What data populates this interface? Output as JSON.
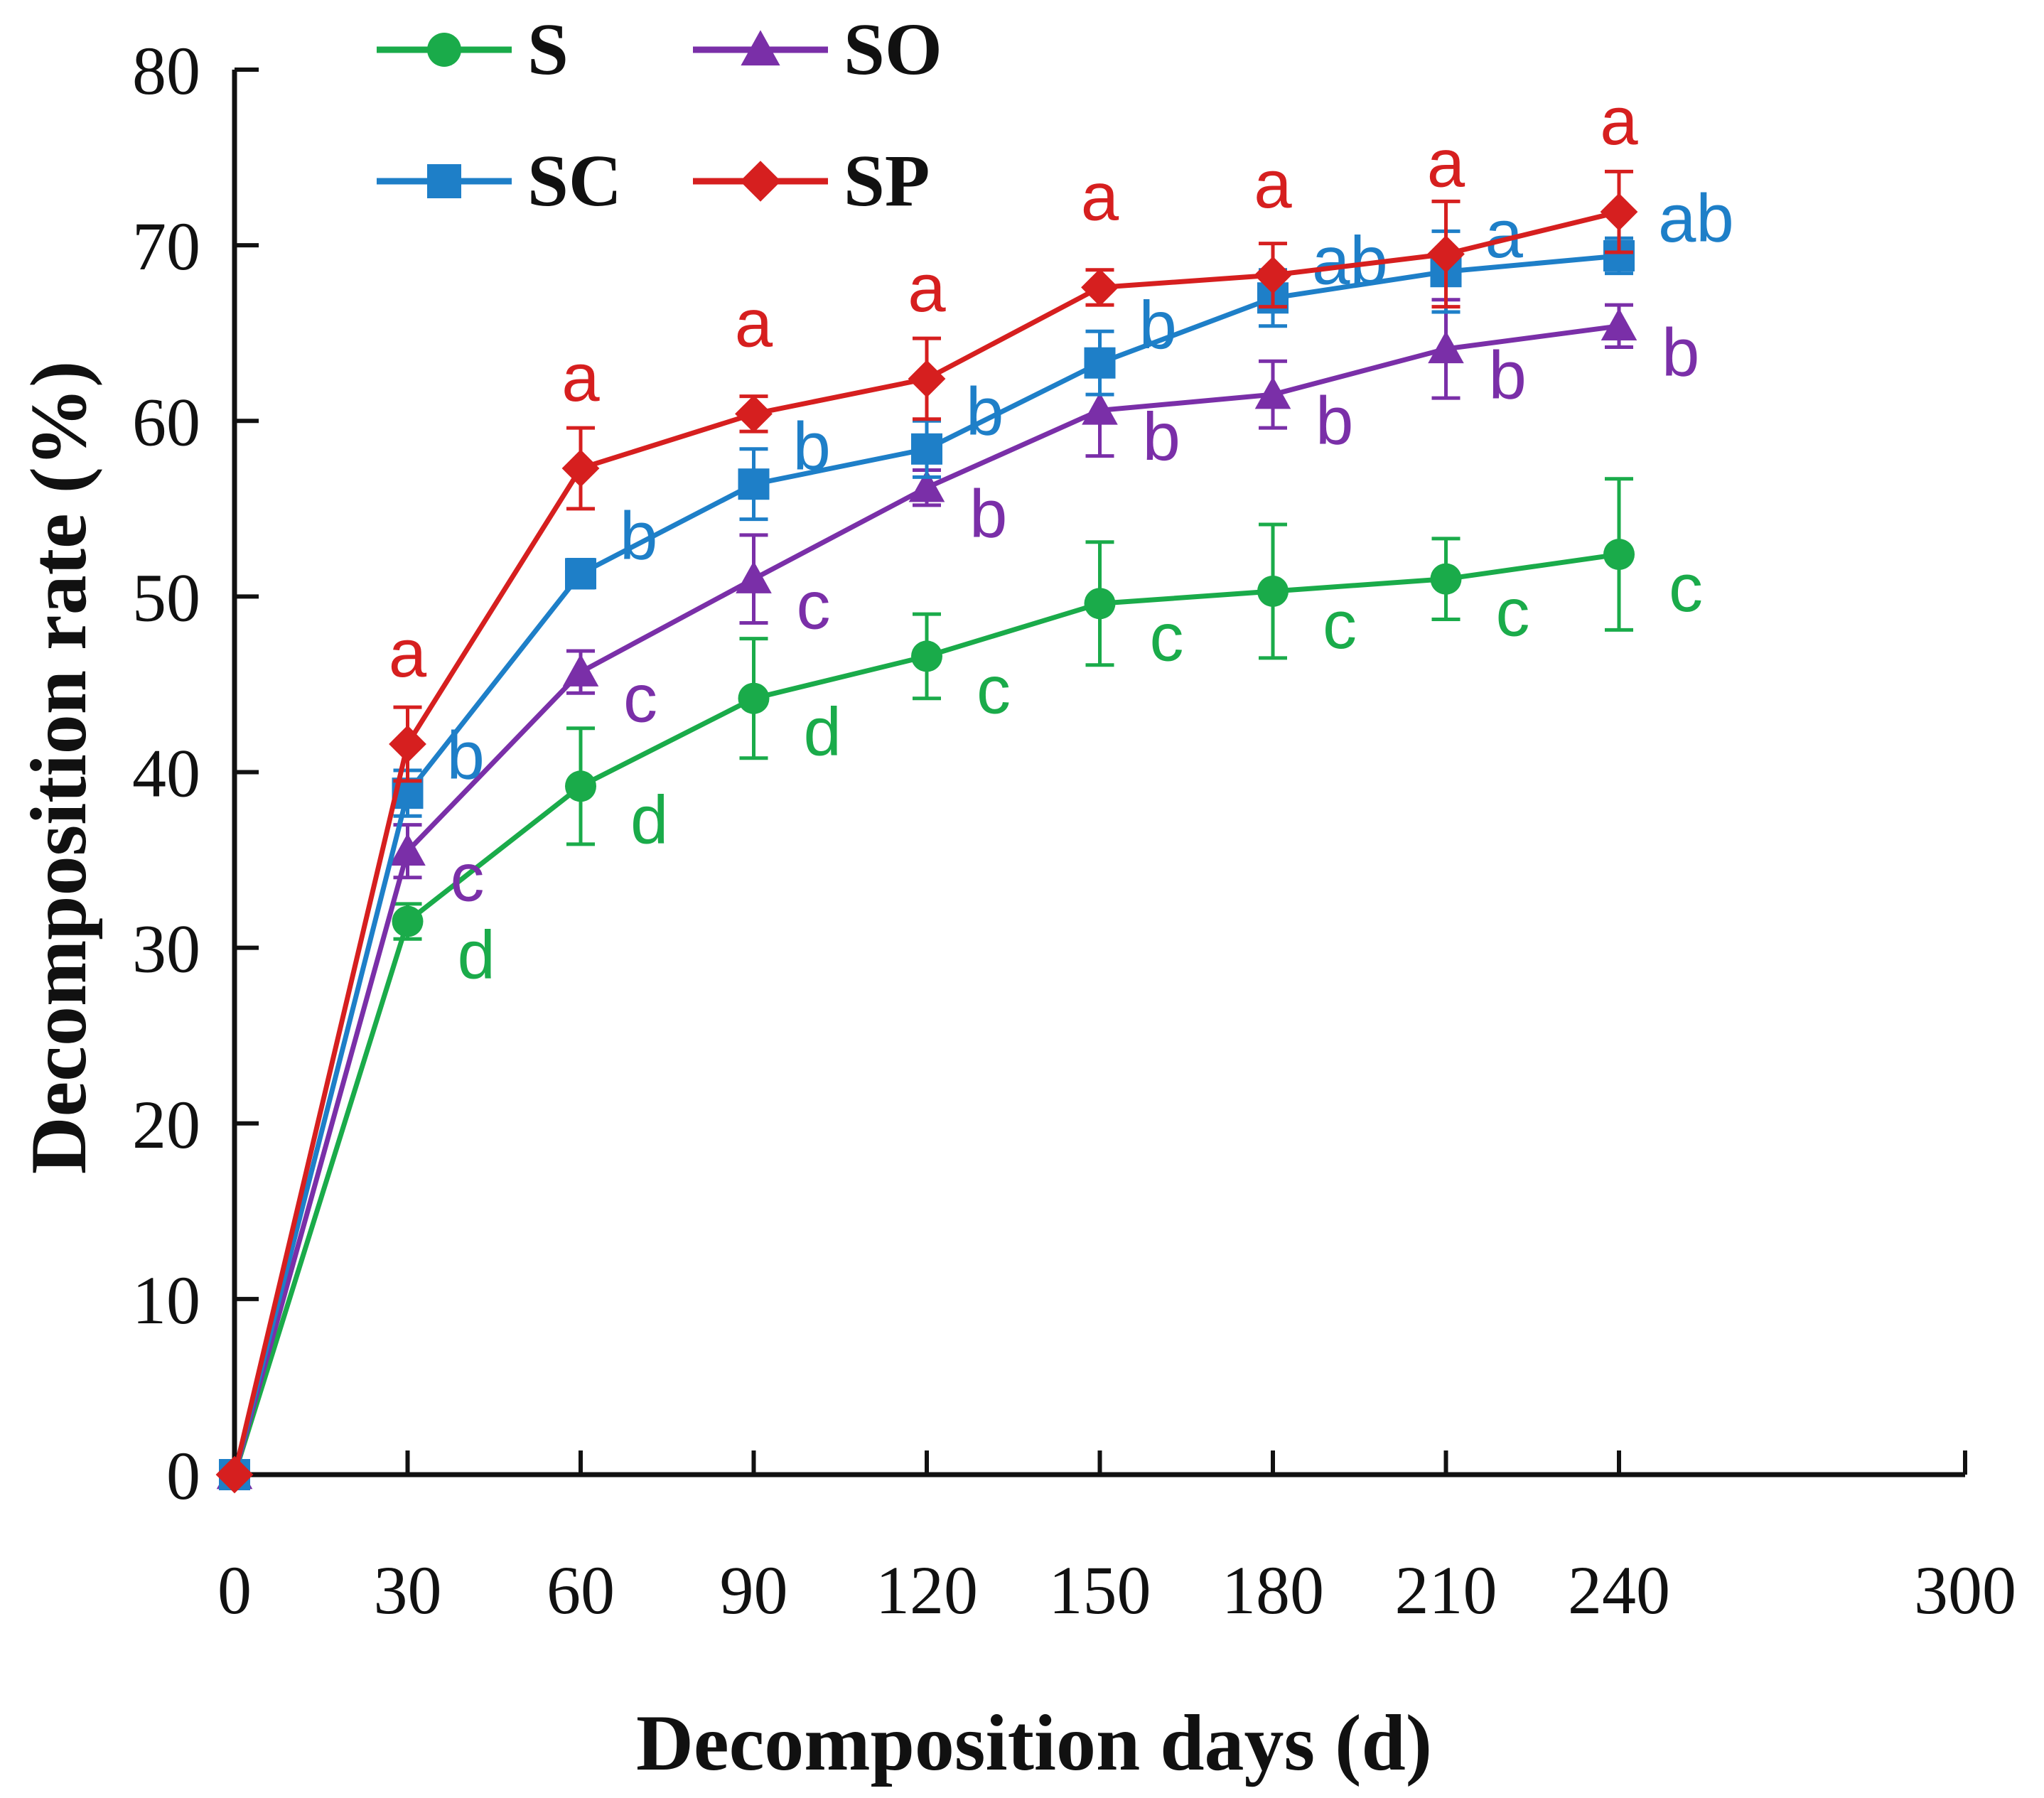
{
  "chart_data": {
    "type": "line",
    "title": "",
    "xlabel": "Decomposition days (d)",
    "ylabel": "Decomposition rate (%)",
    "xlim": [
      0,
      300
    ],
    "ylim": [
      0,
      80
    ],
    "x_ticks": [
      0,
      30,
      60,
      90,
      120,
      150,
      180,
      210,
      240,
      300
    ],
    "y_ticks": [
      0,
      10,
      20,
      30,
      40,
      50,
      60,
      70,
      80
    ],
    "grid": false,
    "legend_position": "top-left",
    "x": [
      0,
      30,
      60,
      90,
      120,
      150,
      180,
      210,
      240
    ],
    "series": [
      {
        "name": "S",
        "color": "#1aab4a",
        "marker": "circle",
        "values": [
          0,
          31.5,
          39.2,
          44.2,
          46.6,
          49.6,
          50.3,
          51.0,
          52.4
        ],
        "errors": [
          0,
          1.0,
          3.3,
          3.4,
          2.4,
          3.5,
          3.8,
          2.3,
          4.3
        ],
        "letters": [
          "",
          "d",
          "d",
          "d",
          "c",
          "c",
          "c",
          "c",
          "c"
        ]
      },
      {
        "name": "SO",
        "color": "#7a2fa8",
        "marker": "triangle",
        "values": [
          0,
          35.5,
          45.7,
          51.0,
          56.2,
          60.6,
          61.5,
          64.1,
          65.4
        ],
        "errors": [
          0,
          1.5,
          1.2,
          2.5,
          1.0,
          2.6,
          1.9,
          2.8,
          1.2
        ],
        "letters": [
          "",
          "c",
          "c",
          "c",
          "b",
          "b",
          "b",
          "b",
          "b"
        ]
      },
      {
        "name": "SC",
        "color": "#1e7fc8",
        "marker": "square",
        "values": [
          0,
          38.8,
          51.3,
          56.4,
          58.4,
          63.3,
          67.0,
          68.5,
          69.4
        ],
        "errors": [
          0,
          1.3,
          0.8,
          2.0,
          1.6,
          1.8,
          1.6,
          2.3,
          1.0
        ],
        "letters": [
          "",
          "b",
          "b",
          "b",
          "b",
          "b",
          "ab",
          "a",
          "ab"
        ]
      },
      {
        "name": "SP",
        "color": "#d61f1f",
        "marker": "diamond",
        "values": [
          0,
          41.6,
          57.3,
          60.4,
          62.4,
          67.6,
          68.3,
          69.5,
          71.9
        ],
        "errors": [
          0,
          2.1,
          2.3,
          1.0,
          2.3,
          1.0,
          1.8,
          3.0,
          2.3
        ],
        "letters": [
          "",
          "a",
          "a",
          "a",
          "a",
          "a",
          "a",
          "a",
          "a"
        ]
      }
    ]
  }
}
